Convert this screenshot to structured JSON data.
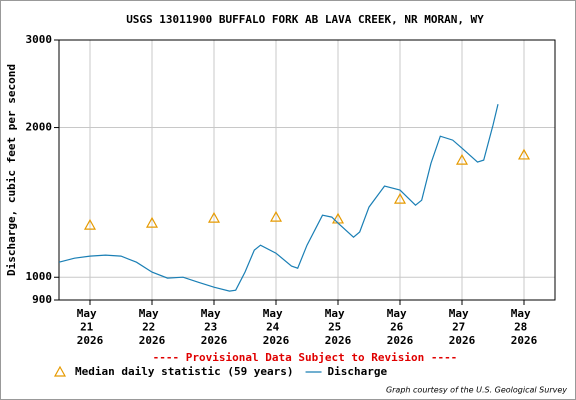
{
  "chart_data": {
    "type": "line",
    "title": "USGS 13011900 BUFFALO FORK AB LAVA CREEK, NR MORAN, WY",
    "y_label": "Discharge, cubic feet per second",
    "annotation": "---- Provisional Data Subject to Revision ----",
    "credit": "Graph courtesy of the U.S. Geological Survey",
    "xlim": [
      21,
      29
    ],
    "xticks": [
      {
        "value": 21.5,
        "label": "May 21 2026"
      },
      {
        "value": 22.5,
        "label": "May 22 2026"
      },
      {
        "value": 23.5,
        "label": "May 23 2026"
      },
      {
        "value": 24.5,
        "label": "May 24 2026"
      },
      {
        "value": 25.5,
        "label": "May 25 2026"
      },
      {
        "value": 26.5,
        "label": "May 26 2026"
      },
      {
        "value": 27.5,
        "label": "May 27 2026"
      },
      {
        "value": 28.5,
        "label": "May 28 2026"
      }
    ],
    "ylim": [
      900,
      3000
    ],
    "yticks": [
      900,
      1000,
      2000,
      3000
    ],
    "log_scale": true,
    "grid": true,
    "series": [
      {
        "name": "Median daily statistic (59 years)",
        "type": "scatter",
        "marker": "triangle",
        "color": "#e69a00",
        "x": [
          21.5,
          22.5,
          23.5,
          24.5,
          25.5,
          26.5,
          27.5,
          28.5
        ],
        "values": [
          1273,
          1285,
          1315,
          1321,
          1310,
          1436,
          1720,
          1762
        ]
      },
      {
        "name": "Discharge",
        "type": "line",
        "color": "#1a7fb5",
        "x": [
          21.0,
          21.25,
          21.5,
          21.75,
          22.0,
          22.25,
          22.5,
          22.75,
          23.0,
          23.25,
          23.5,
          23.75,
          23.85,
          24.0,
          24.15,
          24.25,
          24.5,
          24.75,
          24.85,
          25.0,
          25.25,
          25.4,
          25.5,
          25.75,
          25.85,
          26.0,
          26.25,
          26.5,
          26.75,
          26.85,
          27.0,
          27.15,
          27.35,
          27.5,
          27.75,
          27.85,
          28.0,
          28.08
        ],
        "values": [
          1072,
          1092,
          1103,
          1108,
          1103,
          1072,
          1024,
          996,
          1000,
          977,
          955,
          938,
          942,
          1024,
          1134,
          1160,
          1118,
          1053,
          1043,
          1160,
          1333,
          1321,
          1285,
          1204,
          1233,
          1384,
          1525,
          1497,
          1396,
          1429,
          1696,
          1922,
          1887,
          1818,
          1704,
          1720,
          2023,
          2229
        ]
      }
    ]
  }
}
